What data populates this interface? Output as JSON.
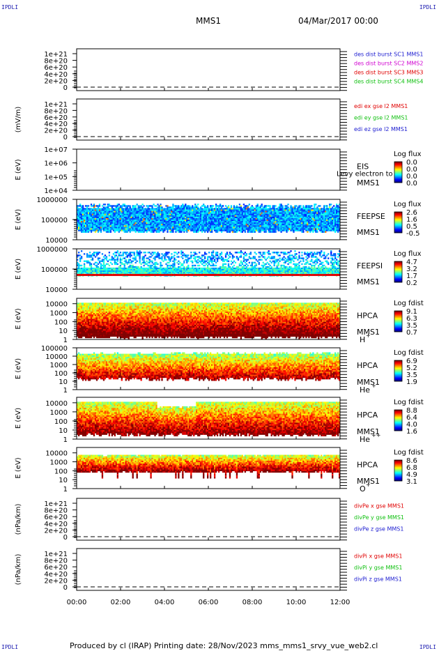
{
  "header": {
    "corner_tl": "IPDLI",
    "corner_tr": "IPDLI",
    "corner_bl": "IPDLI",
    "corner_br": "IPDLI",
    "mission": "MMS1",
    "datetime": "04/Mar/2017 00:00"
  },
  "footer": {
    "text": "Produced by cl (IRAP)   Printing date: 28/Nov/2023   mms_mms1_srvy_vue_web2.cl"
  },
  "x_axis": {
    "ticks": [
      "00:00",
      "02:00",
      "04:00",
      "06:00",
      "08:00",
      "10:00",
      "12:00"
    ]
  },
  "colors": {
    "blue": "#1a1ad0",
    "magenta": "#d000d0",
    "red": "#e00000",
    "green": "#10c010"
  },
  "chart_data": [
    {
      "type": "line",
      "id": "des-dist",
      "ylabel": "",
      "yticks": [
        "1e+21",
        "8e+20",
        "6e+20",
        "4e+20",
        "2e+20",
        "0"
      ],
      "ylim": [
        0,
        1e+21
      ],
      "series": [
        {
          "name": "des dist burst SC1 MMS1",
          "color": "#1a1ad0",
          "values": []
        },
        {
          "name": "des dist burst SC2 MMS2",
          "color": "#d000d0",
          "values": []
        },
        {
          "name": "des dist burst SC3 MMS3",
          "color": "#e00000",
          "values": []
        },
        {
          "name": "des dist burst SC4 MMS4",
          "color": "#10c010",
          "values": []
        }
      ]
    },
    {
      "type": "line",
      "id": "edi-e",
      "ylabel": "(mV/m)",
      "yticks": [
        "1e+21",
        "8e+20",
        "6e+20",
        "4e+20",
        "2e+20",
        "0"
      ],
      "ylim": [
        0,
        1e+21
      ],
      "series": [
        {
          "name": "edi ex gse l2 MMS1",
          "color": "#e00000",
          "values": []
        },
        {
          "name": "edi ey gse l2 MMS1",
          "color": "#10c010",
          "values": []
        },
        {
          "name": "edi ez gse l2 MMS1",
          "color": "#1a1ad0",
          "values": []
        }
      ]
    },
    {
      "type": "heatmap",
      "id": "eis",
      "ylabel": "E (eV)",
      "yticks": [
        "1e+07",
        "1e+06",
        "1e+05",
        "1e+04"
      ],
      "ylim": [
        10000,
        10000000
      ],
      "inst": "EIS",
      "sc": "MMS1",
      "overlay_text": "Levy electron to",
      "colorbar": {
        "title": "Log flux",
        "ticks": [
          "0.0",
          "0.0",
          "0.0",
          "0.0"
        ]
      }
    },
    {
      "type": "heatmap",
      "id": "feepse",
      "ylabel": "E (eV)",
      "yticks": [
        "1000000",
        "100000",
        "10000"
      ],
      "ylim": [
        10000,
        1000000
      ],
      "inst": "FEEPSE",
      "sc": "MMS1",
      "colorbar": {
        "title": "Log flux",
        "ticks": [
          "2.6",
          "1.6",
          "0.5",
          "-0.5"
        ]
      }
    },
    {
      "type": "heatmap",
      "id": "feepsi",
      "ylabel": "E (eV)",
      "yticks": [
        "1000000",
        "100000",
        "10000"
      ],
      "ylim": [
        10000,
        1000000
      ],
      "inst": "FEEPSI",
      "sc": "MMS1",
      "colorbar": {
        "title": "Log flux",
        "ticks": [
          "4.7",
          "3.2",
          "1.7",
          "0.2"
        ]
      }
    },
    {
      "type": "heatmap",
      "id": "hpca-h",
      "ylabel": "E (eV)",
      "yticks": [
        "10000",
        "1000",
        "100",
        "10",
        "1"
      ],
      "ylim": [
        1,
        40000
      ],
      "inst": "HPCA",
      "sc": "MMS1",
      "species": "H",
      "charge": "+",
      "colorbar": {
        "title": "Log fdist",
        "ticks": [
          "9.1",
          "6.3",
          "3.5",
          "0.7"
        ]
      }
    },
    {
      "type": "heatmap",
      "id": "hpca-he",
      "ylabel": "E (eV)",
      "yticks": [
        "100000",
        "10000",
        "1000",
        "100",
        "10",
        "1"
      ],
      "ylim": [
        1,
        100000
      ],
      "inst": "HPCA",
      "sc": "MMS1",
      "species": "He",
      "charge": "+",
      "colorbar": {
        "title": "Log fdist",
        "ticks": [
          "6.9",
          "5.2",
          "3.5",
          "1.9"
        ]
      }
    },
    {
      "type": "heatmap",
      "id": "hpca-he2",
      "ylabel": "E (eV)",
      "yticks": [
        "10000",
        "1000",
        "100",
        "10",
        "1"
      ],
      "ylim": [
        1,
        40000
      ],
      "inst": "HPCA",
      "sc": "MMS1",
      "species": "He",
      "charge": "++",
      "colorbar": {
        "title": "Log fdist",
        "ticks": [
          "8.8",
          "6.4",
          "4.0",
          "1.6"
        ]
      }
    },
    {
      "type": "heatmap",
      "id": "hpca-o",
      "ylabel": "E (eV)",
      "yticks": [
        "10000",
        "1000",
        "100",
        "10",
        "1"
      ],
      "ylim": [
        1,
        40000
      ],
      "inst": "HPCA",
      "sc": "MMS1",
      "species": "O",
      "charge": "+",
      "colorbar": {
        "title": "Log fdist",
        "ticks": [
          "8.6",
          "6.8",
          "4.9",
          "3.1"
        ]
      }
    },
    {
      "type": "line",
      "id": "divpe",
      "ylabel": "(nPa/km)",
      "yticks": [
        "1e+21",
        "8e+20",
        "6e+20",
        "4e+20",
        "2e+20",
        "0"
      ],
      "ylim": [
        0,
        1e+21
      ],
      "series": [
        {
          "name": "divPe x gse MMS1",
          "color": "#e00000",
          "values": []
        },
        {
          "name": "divPe y gse MMS1",
          "color": "#10c010",
          "values": []
        },
        {
          "name": "divPe z gse MMS1",
          "color": "#1a1ad0",
          "values": []
        }
      ]
    },
    {
      "type": "line",
      "id": "divpi",
      "ylabel": "(nPa/km)",
      "yticks": [
        "1e+21",
        "8e+20",
        "6e+20",
        "4e+20",
        "2e+20",
        "0"
      ],
      "ylim": [
        0,
        1e+21
      ],
      "series": [
        {
          "name": "divPi x gse MMS1",
          "color": "#e00000",
          "values": []
        },
        {
          "name": "divPi y gse MMS1",
          "color": "#10c010",
          "values": []
        },
        {
          "name": "divPi z gse MMS1",
          "color": "#1a1ad0",
          "values": []
        }
      ]
    }
  ]
}
